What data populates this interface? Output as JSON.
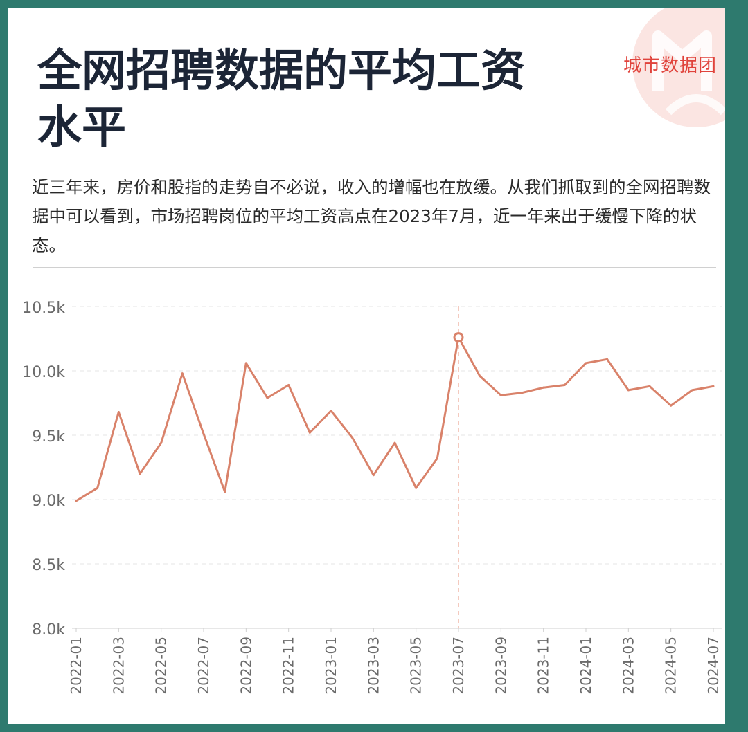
{
  "header": {
    "title_line1": "全网招聘数据的平均工资",
    "title_line2": "水平",
    "brand": "城市数据团"
  },
  "description": "近三年来，房价和股指的走势自不必说，收入的增幅也在放缓。从我们抓取到的全网招聘数据中可以看到，市场招聘岗位的平均工资高点在2023年7月，近一年来出于缓慢下降的状态。",
  "colors": {
    "line": "#d9826a",
    "frame": "#2e7a6e",
    "title": "#1c2536",
    "brand": "#e0433c"
  },
  "chart_data": {
    "type": "line",
    "title": "",
    "xlabel": "",
    "ylabel": "",
    "ylim": [
      8000,
      10500
    ],
    "yticks": [
      8000,
      8500,
      9000,
      9500,
      10000,
      10500
    ],
    "ytick_labels": [
      "8.0k",
      "8.5k",
      "9.0k",
      "9.5k",
      "10.0k",
      "10.5k"
    ],
    "x": [
      "2022-01",
      "2022-02",
      "2022-03",
      "2022-04",
      "2022-05",
      "2022-06",
      "2022-07",
      "2022-08",
      "2022-09",
      "2022-10",
      "2022-11",
      "2022-12",
      "2023-01",
      "2023-02",
      "2023-03",
      "2023-04",
      "2023-05",
      "2023-06",
      "2023-07",
      "2023-08",
      "2023-09",
      "2023-10",
      "2023-11",
      "2023-12",
      "2024-01",
      "2024-02",
      "2024-03",
      "2024-04",
      "2024-05",
      "2024-06",
      "2024-07"
    ],
    "xtick_labels": [
      "2022-01",
      "2022-03",
      "2022-05",
      "2022-07",
      "2022-09",
      "2022-11",
      "2023-01",
      "2023-03",
      "2023-05",
      "2023-07",
      "2023-09",
      "2023-11",
      "2024-01",
      "2024-03",
      "2024-05",
      "2024-07"
    ],
    "series": [
      {
        "values": [
          8990,
          9090,
          9680,
          9200,
          9440,
          9980,
          9510,
          9060,
          10060,
          9790,
          9890,
          9520,
          9690,
          9480,
          9190,
          9440,
          9090,
          9320,
          10260,
          9960,
          9810,
          9830,
          9870,
          9890,
          10060,
          10090,
          9850,
          9880,
          9730,
          9850,
          9880
        ]
      }
    ],
    "highlight": {
      "x": "2023-07",
      "value": 10260
    },
    "grid": true,
    "legend": "none"
  }
}
